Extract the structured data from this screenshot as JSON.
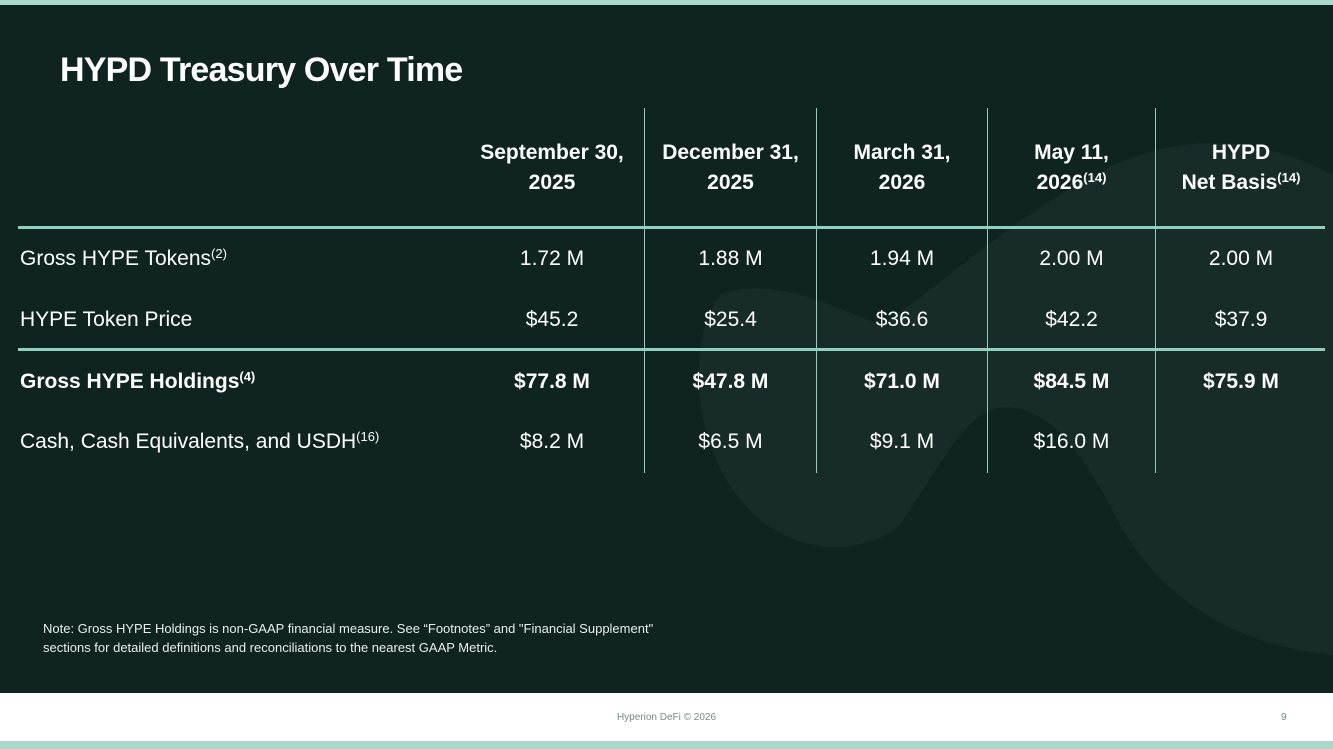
{
  "title": "HYPD Treasury Over Time",
  "columns": [
    {
      "line1": "September 30,",
      "line2": "2025",
      "sup": ""
    },
    {
      "line1": "December 31,",
      "line2": "2025",
      "sup": ""
    },
    {
      "line1": "March 31,",
      "line2": "2026",
      "sup": ""
    },
    {
      "line1": "May 11,",
      "line2": "2026",
      "sup": "(14)"
    },
    {
      "line1": "HYPD",
      "line2": "Net Basis",
      "sup": "(14)"
    }
  ],
  "rows": [
    {
      "label": "Gross HYPE Tokens",
      "sup": "(2)",
      "values": [
        "1.72 M",
        "1.88 M",
        "1.94 M",
        "2.00 M",
        "2.00 M"
      ]
    },
    {
      "label": "HYPE Token Price",
      "sup": "",
      "values": [
        "$45.2",
        "$25.4",
        "$36.6",
        "$42.2",
        "$37.9"
      ]
    },
    {
      "label": "Gross HYPE Holdings",
      "sup": "(4)",
      "values": [
        "$77.8 M",
        "$47.8 M",
        "$71.0 M",
        "$84.5 M",
        "$75.9 M"
      ]
    },
    {
      "label": "Cash, Cash Equivalents, and USDH",
      "sup": "(16)",
      "values": [
        "$8.2 M",
        "$6.5 M",
        "$9.1 M",
        "$16.0 M",
        ""
      ]
    }
  ],
  "note": "Note: Gross HYPE Holdings is non-GAAP financial measure. See “Footnotes” and \"Financial Supplement\" sections for detailed definitions and reconciliations to the nearest GAAP Metric.",
  "footer": {
    "copyright": "Hyperion DeFi © 2026",
    "page": "9"
  },
  "colors": {
    "background": "#0f2421",
    "accent": "#8fd0c1",
    "band": "#a9d7cc"
  }
}
